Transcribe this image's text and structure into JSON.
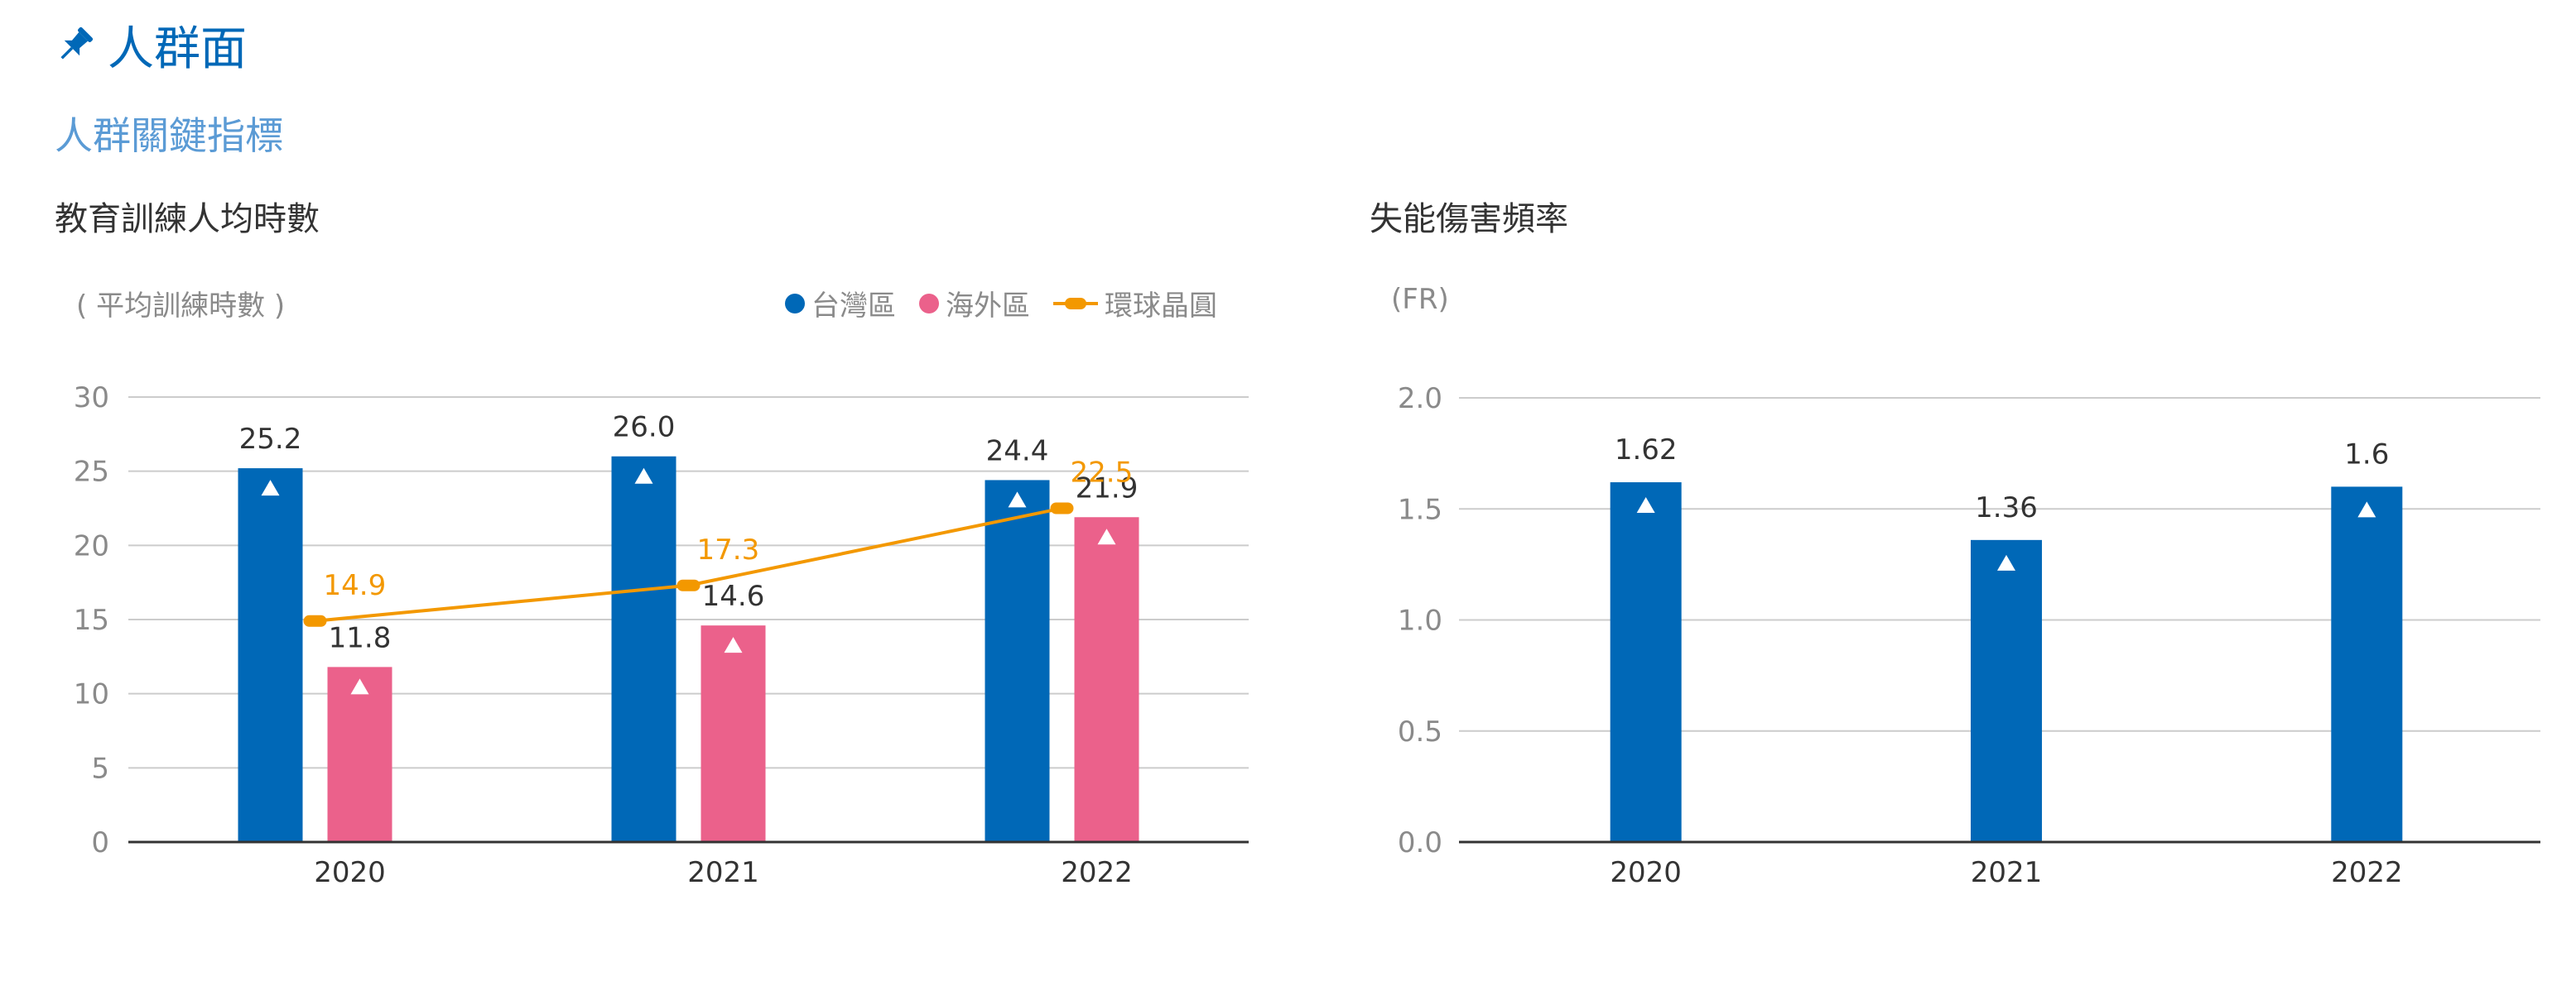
{
  "page": {
    "section_title": "人群面",
    "subsection_title": "人群關鍵指標"
  },
  "colors": {
    "accent_blue": "#0068b7",
    "subtitle_blue": "#5b9bd5",
    "taiwan": "#0068b7",
    "overseas": "#eb618b",
    "global": "#f39800",
    "grid": "#cccccc",
    "axis": "#333333"
  },
  "icons": {
    "section": "pushpin-icon",
    "bar_marker": "triangle-up-icon"
  },
  "chart_data": [
    {
      "type": "bar",
      "title": "教育訓練人均時數",
      "unit": "( 平均訓練時數 )",
      "categories": [
        "2020",
        "2021",
        "2022"
      ],
      "ylim": [
        0,
        30
      ],
      "yticks": [
        "0",
        "5",
        "10",
        "15",
        "20",
        "25",
        "30"
      ],
      "grid": true,
      "legend_position": "top-right",
      "series": [
        {
          "name": "台灣區",
          "kind": "bar",
          "values": [
            25.2,
            26.0,
            24.4
          ],
          "labels": [
            "25.2",
            "26.0",
            "24.4"
          ]
        },
        {
          "name": "海外區",
          "kind": "bar",
          "values": [
            11.8,
            14.6,
            21.9
          ],
          "labels": [
            "11.8",
            "14.6",
            "21.9"
          ]
        },
        {
          "name": "環球晶圓",
          "kind": "line",
          "values": [
            14.9,
            17.3,
            22.5
          ],
          "labels": [
            "14.9",
            "17.3",
            "22.5"
          ]
        }
      ]
    },
    {
      "type": "bar",
      "title": "失能傷害頻率",
      "unit": "(FR)",
      "categories": [
        "2020",
        "2021",
        "2022"
      ],
      "ylim": [
        0,
        2.0
      ],
      "yticks": [
        "0.0",
        "0.5",
        "1.0",
        "1.5",
        "2.0"
      ],
      "grid": true,
      "series": [
        {
          "kind": "bar",
          "values": [
            1.62,
            1.36,
            1.6
          ],
          "labels": [
            "1.62",
            "1.36",
            "1.6"
          ]
        }
      ]
    }
  ]
}
